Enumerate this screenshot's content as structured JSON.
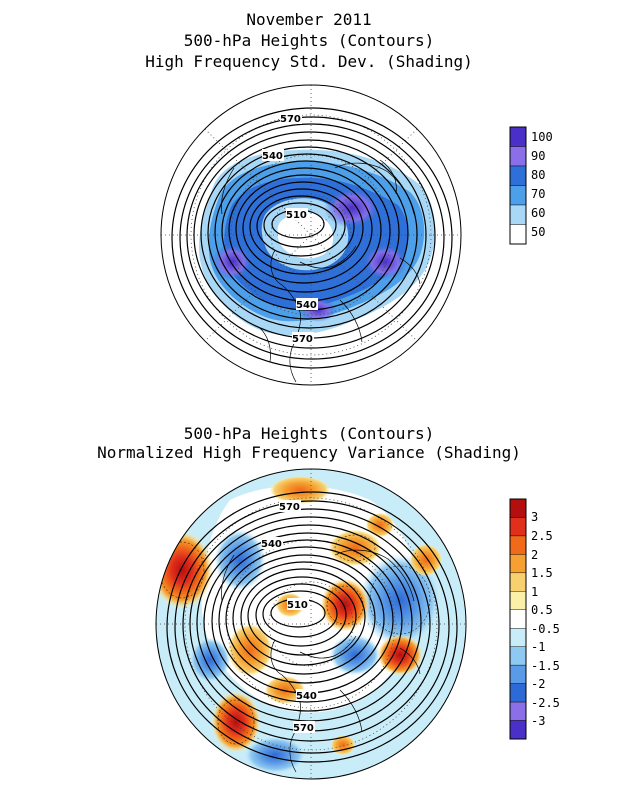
{
  "top_panel": {
    "title_lines": [
      "November 2011",
      "500-hPa Heights (Contours)",
      "High Frequency Std. Dev. (Shading)"
    ],
    "contour_labels": [
      "570",
      "540",
      "510",
      "540",
      "570"
    ],
    "colorbar": {
      "labels": [
        "100",
        "90",
        "80",
        "70",
        "60",
        "50"
      ],
      "colors": [
        "#4b2fc9",
        "#8a6fe8",
        "#2e6fd8",
        "#4c9fe8",
        "#a8d8f5",
        "#ffffff"
      ]
    }
  },
  "bottom_panel": {
    "title_lines": [
      "500-hPa Heights (Contours)",
      "Normalized High Frequency Variance (Shading)"
    ],
    "contour_labels": [
      "570",
      "540",
      "510",
      "540",
      "570"
    ],
    "colorbar": {
      "labels": [
        "3",
        "2.5",
        "2",
        "1.5",
        "1",
        "0.5",
        "-0.5",
        "-1",
        "-1.5",
        "-2",
        "-2.5",
        "-3"
      ],
      "colors": [
        "#b40f0f",
        "#e0301c",
        "#f06a1a",
        "#f5a030",
        "#f7d070",
        "#fbf0a8",
        "#ffffff",
        "#c8ecf8",
        "#8fc8f0",
        "#5a9ae6",
        "#2e6ad6",
        "#8a6fe8",
        "#4b2fc9"
      ]
    }
  },
  "colors": {
    "contour": "#000000",
    "land": "#000000",
    "grid": "#444444"
  }
}
